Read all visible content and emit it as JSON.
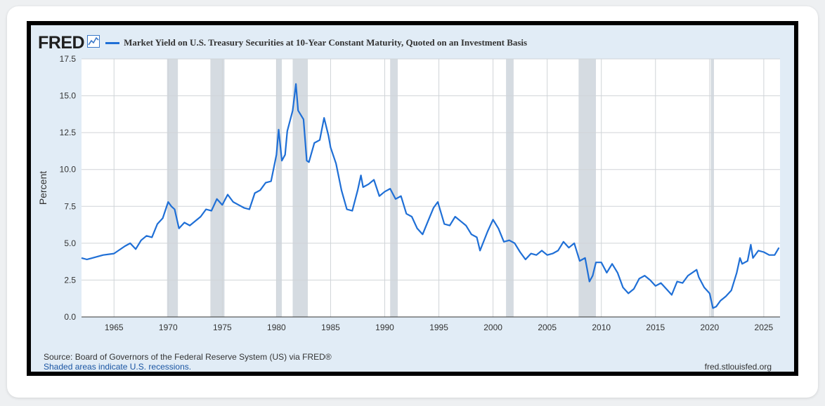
{
  "logo": {
    "text": "FRED",
    "icon": "chart-line-icon"
  },
  "chart_data": {
    "type": "line",
    "title": "Market Yield on U.S. Treasury Securities at 10-Year Constant Maturity, Quoted on an Investment Basis",
    "ylabel": "Percent",
    "xlabel": "",
    "xlim": [
      1962.0,
      2026.5
    ],
    "ylim": [
      0,
      17.5
    ],
    "yticks": [
      0.0,
      2.5,
      5.0,
      7.5,
      10.0,
      12.5,
      15.0,
      17.5
    ],
    "ytick_labels": [
      "0.0",
      "2.5",
      "5.0",
      "7.5",
      "10.0",
      "12.5",
      "15.0",
      "17.5"
    ],
    "xticks": [
      1965,
      1970,
      1975,
      1980,
      1985,
      1990,
      1995,
      2000,
      2005,
      2010,
      2015,
      2020,
      2025
    ],
    "xtick_labels": [
      "1965",
      "1970",
      "1975",
      "1980",
      "1985",
      "1990",
      "1995",
      "2000",
      "2005",
      "2010",
      "2015",
      "2020",
      "2025"
    ],
    "grid": true,
    "legend": "top-left",
    "series_color": "#1f6fd6",
    "recession_color": "#d5dbe1",
    "recessions": [
      [
        1969.9,
        1970.9
      ],
      [
        1973.9,
        1975.2
      ],
      [
        1980.0,
        1980.5
      ],
      [
        1981.5,
        1982.9
      ],
      [
        1990.5,
        1991.2
      ],
      [
        2001.2,
        2001.9
      ],
      [
        2007.9,
        2009.5
      ],
      [
        2020.1,
        2020.4
      ]
    ],
    "x": [
      1962.0,
      1962.5,
      1963.0,
      1964.0,
      1965.0,
      1966.0,
      1966.5,
      1967.0,
      1967.5,
      1968.0,
      1968.5,
      1969.0,
      1969.5,
      1970.0,
      1970.3,
      1970.6,
      1971.0,
      1971.5,
      1972.0,
      1973.0,
      1973.5,
      1974.0,
      1974.5,
      1975.0,
      1975.5,
      1976.0,
      1976.5,
      1977.0,
      1977.5,
      1978.0,
      1978.5,
      1979.0,
      1979.5,
      1980.0,
      1980.2,
      1980.5,
      1980.8,
      1981.0,
      1981.5,
      1981.8,
      1982.0,
      1982.5,
      1982.8,
      1983.0,
      1983.5,
      1984.0,
      1984.4,
      1984.8,
      1985.0,
      1985.5,
      1986.0,
      1986.5,
      1987.0,
      1987.5,
      1987.8,
      1988.0,
      1988.5,
      1989.0,
      1989.5,
      1990.0,
      1990.5,
      1991.0,
      1991.5,
      1992.0,
      1992.5,
      1993.0,
      1993.5,
      1994.0,
      1994.5,
      1994.9,
      1995.5,
      1996.0,
      1996.5,
      1997.0,
      1997.5,
      1998.0,
      1998.5,
      1998.8,
      1999.5,
      2000.0,
      2000.5,
      2001.0,
      2001.5,
      2002.0,
      2002.5,
      2003.0,
      2003.5,
      2004.0,
      2004.5,
      2005.0,
      2005.5,
      2006.0,
      2006.5,
      2007.0,
      2007.5,
      2008.0,
      2008.5,
      2008.9,
      2009.2,
      2009.5,
      2010.0,
      2010.5,
      2011.0,
      2011.5,
      2012.0,
      2012.5,
      2013.0,
      2013.5,
      2014.0,
      2014.5,
      2015.0,
      2015.5,
      2016.0,
      2016.5,
      2017.0,
      2017.5,
      2018.0,
      2018.8,
      2019.0,
      2019.5,
      2020.0,
      2020.3,
      2020.6,
      2021.0,
      2021.5,
      2022.0,
      2022.5,
      2022.8,
      2023.0,
      2023.5,
      2023.8,
      2024.0,
      2024.5,
      2025.0,
      2025.5,
      2026.0,
      2026.4
    ],
    "y": [
      4.0,
      3.9,
      4.0,
      4.2,
      4.3,
      4.8,
      5.0,
      4.6,
      5.2,
      5.5,
      5.4,
      6.3,
      6.7,
      7.8,
      7.5,
      7.3,
      6.0,
      6.4,
      6.2,
      6.8,
      7.3,
      7.2,
      8.0,
      7.6,
      8.3,
      7.8,
      7.6,
      7.4,
      7.3,
      8.4,
      8.6,
      9.1,
      9.2,
      11.0,
      12.7,
      10.6,
      11.0,
      12.6,
      14.0,
      15.8,
      14.0,
      13.4,
      10.6,
      10.5,
      11.8,
      12.0,
      13.5,
      12.3,
      11.5,
      10.4,
      8.6,
      7.3,
      7.2,
      8.6,
      9.6,
      8.8,
      9.0,
      9.3,
      8.2,
      8.5,
      8.7,
      8.0,
      8.2,
      7.0,
      6.8,
      6.0,
      5.6,
      6.5,
      7.4,
      7.8,
      6.3,
      6.2,
      6.8,
      6.5,
      6.2,
      5.6,
      5.4,
      4.5,
      5.8,
      6.6,
      6.0,
      5.1,
      5.2,
      5.0,
      4.4,
      3.9,
      4.3,
      4.2,
      4.5,
      4.2,
      4.3,
      4.5,
      5.1,
      4.7,
      5.0,
      3.8,
      4.0,
      2.4,
      2.8,
      3.7,
      3.7,
      3.0,
      3.6,
      3.0,
      2.0,
      1.6,
      1.9,
      2.6,
      2.8,
      2.5,
      2.1,
      2.3,
      1.9,
      1.5,
      2.4,
      2.3,
      2.8,
      3.2,
      2.7,
      2.0,
      1.6,
      0.6,
      0.7,
      1.1,
      1.4,
      1.8,
      3.0,
      4.0,
      3.6,
      3.8,
      4.9,
      4.0,
      4.5,
      4.4,
      4.2,
      4.2,
      4.7
    ]
  },
  "footer": {
    "source": "Source: Board of Governors of the Federal Reserve System (US) via FRED®",
    "note": "Shaded areas indicate U.S. recessions.",
    "site": "fred.stlouisfed.org"
  }
}
